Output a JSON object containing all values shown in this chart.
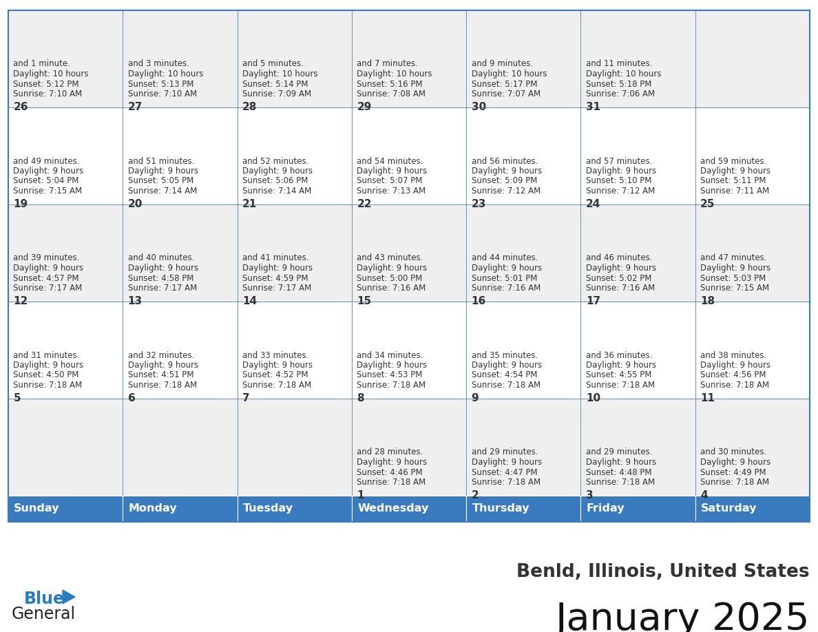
{
  "title": "January 2025",
  "subtitle": "Benld, Illinois, United States",
  "days_of_week": [
    "Sunday",
    "Monday",
    "Tuesday",
    "Wednesday",
    "Thursday",
    "Friday",
    "Saturday"
  ],
  "header_bg": "#3a7bbf",
  "header_text": "#ffffff",
  "row_bg_even": "#efefef",
  "row_bg_odd": "#ffffff",
  "cell_text": "#333333",
  "title_color": "#111111",
  "subtitle_color": "#333333",
  "border_color": "#3a7bbf",
  "logo_text_color": "#222222",
  "logo_blue_color": "#2b7bbf",
  "calendar_data": [
    [
      {
        "day": "",
        "sunrise": "",
        "sunset": "",
        "daylight": ""
      },
      {
        "day": "",
        "sunrise": "",
        "sunset": "",
        "daylight": ""
      },
      {
        "day": "",
        "sunrise": "",
        "sunset": "",
        "daylight": ""
      },
      {
        "day": "1",
        "sunrise": "7:18 AM",
        "sunset": "4:46 PM",
        "daylight": "9 hours and 28 minutes."
      },
      {
        "day": "2",
        "sunrise": "7:18 AM",
        "sunset": "4:47 PM",
        "daylight": "9 hours and 29 minutes."
      },
      {
        "day": "3",
        "sunrise": "7:18 AM",
        "sunset": "4:48 PM",
        "daylight": "9 hours and 29 minutes."
      },
      {
        "day": "4",
        "sunrise": "7:18 AM",
        "sunset": "4:49 PM",
        "daylight": "9 hours and 30 minutes."
      }
    ],
    [
      {
        "day": "5",
        "sunrise": "7:18 AM",
        "sunset": "4:50 PM",
        "daylight": "9 hours and 31 minutes."
      },
      {
        "day": "6",
        "sunrise": "7:18 AM",
        "sunset": "4:51 PM",
        "daylight": "9 hours and 32 minutes."
      },
      {
        "day": "7",
        "sunrise": "7:18 AM",
        "sunset": "4:52 PM",
        "daylight": "9 hours and 33 minutes."
      },
      {
        "day": "8",
        "sunrise": "7:18 AM",
        "sunset": "4:53 PM",
        "daylight": "9 hours and 34 minutes."
      },
      {
        "day": "9",
        "sunrise": "7:18 AM",
        "sunset": "4:54 PM",
        "daylight": "9 hours and 35 minutes."
      },
      {
        "day": "10",
        "sunrise": "7:18 AM",
        "sunset": "4:55 PM",
        "daylight": "9 hours and 36 minutes."
      },
      {
        "day": "11",
        "sunrise": "7:18 AM",
        "sunset": "4:56 PM",
        "daylight": "9 hours and 38 minutes."
      }
    ],
    [
      {
        "day": "12",
        "sunrise": "7:17 AM",
        "sunset": "4:57 PM",
        "daylight": "9 hours and 39 minutes."
      },
      {
        "day": "13",
        "sunrise": "7:17 AM",
        "sunset": "4:58 PM",
        "daylight": "9 hours and 40 minutes."
      },
      {
        "day": "14",
        "sunrise": "7:17 AM",
        "sunset": "4:59 PM",
        "daylight": "9 hours and 41 minutes."
      },
      {
        "day": "15",
        "sunrise": "7:16 AM",
        "sunset": "5:00 PM",
        "daylight": "9 hours and 43 minutes."
      },
      {
        "day": "16",
        "sunrise": "7:16 AM",
        "sunset": "5:01 PM",
        "daylight": "9 hours and 44 minutes."
      },
      {
        "day": "17",
        "sunrise": "7:16 AM",
        "sunset": "5:02 PM",
        "daylight": "9 hours and 46 minutes."
      },
      {
        "day": "18",
        "sunrise": "7:15 AM",
        "sunset": "5:03 PM",
        "daylight": "9 hours and 47 minutes."
      }
    ],
    [
      {
        "day": "19",
        "sunrise": "7:15 AM",
        "sunset": "5:04 PM",
        "daylight": "9 hours and 49 minutes."
      },
      {
        "day": "20",
        "sunrise": "7:14 AM",
        "sunset": "5:05 PM",
        "daylight": "9 hours and 51 minutes."
      },
      {
        "day": "21",
        "sunrise": "7:14 AM",
        "sunset": "5:06 PM",
        "daylight": "9 hours and 52 minutes."
      },
      {
        "day": "22",
        "sunrise": "7:13 AM",
        "sunset": "5:07 PM",
        "daylight": "9 hours and 54 minutes."
      },
      {
        "day": "23",
        "sunrise": "7:12 AM",
        "sunset": "5:09 PM",
        "daylight": "9 hours and 56 minutes."
      },
      {
        "day": "24",
        "sunrise": "7:12 AM",
        "sunset": "5:10 PM",
        "daylight": "9 hours and 57 minutes."
      },
      {
        "day": "25",
        "sunrise": "7:11 AM",
        "sunset": "5:11 PM",
        "daylight": "9 hours and 59 minutes."
      }
    ],
    [
      {
        "day": "26",
        "sunrise": "7:10 AM",
        "sunset": "5:12 PM",
        "daylight": "10 hours and 1 minute."
      },
      {
        "day": "27",
        "sunrise": "7:10 AM",
        "sunset": "5:13 PM",
        "daylight": "10 hours and 3 minutes."
      },
      {
        "day": "28",
        "sunrise": "7:09 AM",
        "sunset": "5:14 PM",
        "daylight": "10 hours and 5 minutes."
      },
      {
        "day": "29",
        "sunrise": "7:08 AM",
        "sunset": "5:16 PM",
        "daylight": "10 hours and 7 minutes."
      },
      {
        "day": "30",
        "sunrise": "7:07 AM",
        "sunset": "5:17 PM",
        "daylight": "10 hours and 9 minutes."
      },
      {
        "day": "31",
        "sunrise": "7:06 AM",
        "sunset": "5:18 PM",
        "daylight": "10 hours and 11 minutes."
      },
      {
        "day": "",
        "sunrise": "",
        "sunset": "",
        "daylight": ""
      }
    ]
  ]
}
